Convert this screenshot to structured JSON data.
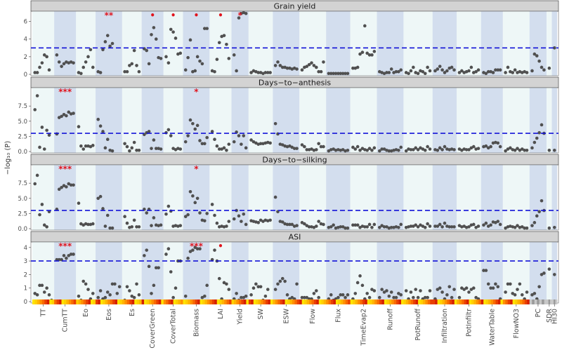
{
  "chart_data": {
    "type": "scatter",
    "ylabel": "−log₁₀ (P)",
    "threshold": 3,
    "x_categories": [
      "TT",
      "CumTT",
      "Eo",
      "Eos",
      "Es",
      "CoverGreen",
      "CoverTotal",
      "Biomass",
      "LAI",
      "Yield",
      "SW",
      "ESW",
      "Flow",
      "Flux",
      "TimeEvap2",
      "Runoff",
      "PotRunoff",
      "Infiltration",
      "PotInfiltr",
      "WaterTable",
      "FlowNO3",
      "PC",
      "SDR",
      "HI30"
    ],
    "panels": [
      {
        "title": "Grain yield",
        "ylim": [
          0,
          7
        ],
        "yticks": [
          "0",
          "2",
          "4",
          "6"
        ],
        "ytick_values": [
          0,
          2,
          4,
          6
        ],
        "values": {
          "TT": [
            0.2,
            0.2,
            0.8,
            1.3,
            2.2,
            2.0,
            0.5
          ],
          "CumTT": [
            2.2,
            1.4,
            0.9,
            1.2,
            1.4,
            1.3,
            1.4,
            1.3
          ],
          "Eo": [
            0.2,
            0.1,
            0.8,
            1.4,
            2.0,
            2.8,
            0.8
          ],
          "Eos": [
            0.3,
            0.2,
            2.8,
            3.7,
            4.4,
            3.2,
            3.5
          ],
          "Es": [
            0.3,
            0.3,
            1.0,
            1.2,
            2.7,
            1.0,
            0.3
          ],
          "CoverGreen": [
            2.9,
            2.7,
            1.2,
            4.5,
            5.3,
            4.0,
            1.9,
            1.8
          ],
          "CoverTotal": [
            2.0,
            1.3,
            5.1,
            4.8,
            4.1,
            2.3,
            2.4
          ],
          "Biomass": [
            0.5,
            1.9,
            3.9,
            0.3,
            0.4,
            2.0,
            1.5,
            1.2,
            5.2,
            5.2
          ],
          "LAI": [
            0.4,
            0.3,
            1.7,
            3.6,
            4.3,
            4.4,
            3.4,
            1.8
          ],
          "Yield": [
            2.2,
            0.4,
            6.4,
            6.9,
            7.0,
            6.9
          ],
          "SW": [
            0.2,
            0.4,
            0.3,
            0.2,
            0.2,
            0.1,
            0.2,
            0.2,
            0.2
          ],
          "ESW": [
            1.0,
            1.4,
            1.0,
            0.8,
            0.8,
            0.7,
            0.7,
            0.6,
            0.7,
            0.6
          ],
          "Flow": [
            0.5,
            0.8,
            0.9,
            1.1,
            1.3,
            1.0,
            0.8,
            0.3,
            0.3,
            1.4
          ],
          "Flux": [
            0.1,
            0.1,
            0.1,
            0.1,
            0.1,
            0.1,
            0.1,
            0.1,
            0.1
          ],
          "TimeEvap2": [
            0.7,
            0.7,
            0.8,
            2.3,
            2.5,
            5.5,
            2.4,
            2.2,
            2.2,
            2.6
          ],
          "Runoff": [
            0.3,
            0.2,
            0.1,
            0.2,
            0.2,
            0.6,
            0.2,
            0.3,
            0.3,
            0.5
          ],
          "PotRunoff": [
            0.2,
            0.1,
            0.4,
            0.8,
            0.2,
            0.1,
            0.4,
            0.3,
            0.1,
            0.8,
            0.4
          ],
          "Infiltration": [
            0.4,
            0.6,
            0.9,
            0.5,
            0.2,
            0.4,
            0.7,
            0.8,
            0.5
          ],
          "PotInfiltr": [
            0.2,
            0.4,
            0.2,
            0.3,
            0.4,
            0.8,
            0.2,
            0.3,
            0.5
          ],
          "WaterTable": [
            0.2,
            0.1,
            0.3,
            0.3,
            0.2,
            0.5,
            0.5,
            0.5
          ],
          "FlowNO3": [
            0.2,
            0.8,
            0.3,
            0.2,
            0.5,
            0.2,
            0.3,
            0.2,
            0.3,
            0.2
          ],
          "PC": [
            0.4,
            2.3,
            2.1,
            1.5,
            0.8,
            0.5
          ],
          "SDR": [
            0.7
          ],
          "HI30": [
            3.0
          ]
        },
        "stars": [
          {
            "category": "Eos",
            "text": "**"
          },
          {
            "category": "CoverGreen",
            "text": "•"
          },
          {
            "category": "CoverTotal",
            "text": "•"
          },
          {
            "category": "Biomass",
            "text": "•"
          },
          {
            "category": "LAI",
            "text": "•"
          },
          {
            "category": "Yield",
            "text": "*"
          }
        ]
      },
      {
        "title": "Days−to−anthesis",
        "ylim": [
          0,
          10.3
        ],
        "yticks": [
          "0.0",
          "2.5",
          "5.0",
          "7.5"
        ],
        "ytick_values": [
          0,
          2.5,
          5.0,
          7.5
        ],
        "values": {
          "TT": [
            6.9,
            9.2,
            0.7,
            4.0,
            0.4,
            3.5,
            2.7
          ],
          "CumTT": [
            2.9,
            5.6,
            5.8,
            6.1,
            5.9,
            6.5,
            6.2,
            6.3
          ],
          "Eo": [
            4.1,
            0.9,
            0.4,
            0.9,
            0.9,
            0.8,
            1.0
          ],
          "Eos": [
            5.3,
            4.2,
            3.3,
            0.6,
            2.0,
            0.2,
            0.1
          ],
          "Es": [
            1.3,
            0.8,
            0.1,
            0.6,
            1.5,
            0.2,
            0.2
          ],
          "CoverGreen": [
            2.8,
            3.1,
            3.3,
            0.5,
            1.9,
            0.5,
            0.5,
            0.4
          ],
          "CoverTotal": [
            3.1,
            3.6,
            2.6,
            0.5,
            0.3,
            0.5,
            0.4
          ],
          "Biomass": [
            1.6,
            2.6,
            5.2,
            4.6,
            3.7,
            4.3,
            1.8,
            1.3,
            1.3,
            2.3
          ],
          "LAI": [
            3.3,
            2.0,
            0.9,
            0.4,
            0.4,
            0.6,
            0.2,
            1.2
          ],
          "Yield": [
            1.6,
            3.2,
            2.6,
            1.2,
            2.6,
            0.6
          ],
          "SW": [
            1.9,
            1.6,
            1.4,
            1.2,
            1.3,
            1.3,
            1.4,
            1.5,
            1.4
          ],
          "ESW": [
            4.6,
            2.9,
            1.2,
            1.1,
            0.9,
            0.8,
            0.9,
            0.7,
            0.5,
            0.5
          ],
          "Flow": [
            1.1,
            0.8,
            0.3,
            0.3,
            0.4,
            0.2,
            0.3,
            1.3,
            0.8,
            0.8
          ],
          "Flux": [
            0.1,
            0.3,
            0.4,
            0.2,
            0.3,
            0.2,
            0.3,
            0.1,
            0.2
          ],
          "TimeEvap2": [
            0.7,
            0.4,
            0.8,
            0.2,
            0.5,
            0.3,
            0.2,
            0.5,
            0.2,
            0.6
          ],
          "Runoff": [
            0.1,
            0.4,
            0.4,
            0.2,
            0.1,
            0.1,
            0.2,
            0.3,
            0.2,
            0.7
          ],
          "PotRunoff": [
            0.1,
            0.4,
            0.3,
            0.3,
            0.6,
            0.3,
            0.6,
            0.4,
            0.2,
            0.8,
            0.4
          ],
          "Infiltration": [
            0.3,
            0.2,
            0.6,
            0.3,
            0.8,
            0.4,
            0.3,
            0.4,
            0.3
          ],
          "PotInfiltr": [
            0.4,
            0.2,
            0.4,
            0.3,
            0.3,
            0.6,
            0.8,
            0.4,
            0.5
          ],
          "WaterTable": [
            0.8,
            0.9,
            0.6,
            0.8,
            1.4,
            1.5,
            1.4,
            0.8
          ],
          "FlowNO3": [
            0.1,
            0.4,
            0.6,
            0.3,
            0.2,
            0.5,
            0.2,
            0.4,
            0.2,
            0.2
          ],
          "PC": [
            0.6,
            1.5,
            2.2,
            3.1,
            4.4,
            3.0
          ],
          "SDR": [
            0.2
          ],
          "HI30": [
            0.2
          ]
        },
        "stars": [
          {
            "category": "CumTT",
            "text": "***"
          },
          {
            "category": "Biomass",
            "text": "*"
          }
        ]
      },
      {
        "title": "Days−to−silking",
        "ylim": [
          0,
          10.3
        ],
        "yticks": [
          "0.0",
          "2.5",
          "5.0",
          "7.5"
        ],
        "ytick_values": [
          0,
          2.5,
          5.0,
          7.5
        ],
        "values": {
          "TT": [
            7.4,
            8.8,
            2.3,
            4.0,
            0.6,
            0.3,
            2.8
          ],
          "CumTT": [
            3.2,
            6.5,
            6.8,
            7.1,
            6.9,
            7.4,
            7.2,
            7.2
          ],
          "Eo": [
            4.2,
            0.8,
            0.6,
            0.8,
            0.7,
            0.7,
            0.8
          ],
          "Eos": [
            5.0,
            5.3,
            3.3,
            0.4,
            2.2,
            0.1,
            0.1
          ],
          "Es": [
            2.0,
            0.9,
            0.2,
            0.3,
            1.4,
            0.3,
            0.3
          ],
          "CoverGreen": [
            3.2,
            2.6,
            3.2,
            0.5,
            1.8,
            0.6,
            0.5,
            0.6
          ],
          "CoverTotal": [
            2.4,
            3.7,
            2.9,
            0.4,
            0.5,
            0.4,
            0.5
          ],
          "Biomass": [
            2.0,
            2.3,
            6.1,
            5.4,
            4.3,
            5.0,
            2.6,
            1.4,
            1.3,
            2.5
          ],
          "LAI": [
            4.0,
            2.2,
            0.9,
            0.3,
            0.4,
            0.3,
            0.4,
            1.2
          ],
          "Yield": [
            1.6,
            3.0,
            2.1,
            1.2,
            2.4,
            0.7
          ],
          "SW": [
            1.3,
            1.2,
            1.1,
            1.0,
            1.4,
            1.2,
            1.4,
            1.3,
            1.4
          ],
          "ESW": [
            5.2,
            2.8,
            1.2,
            1.1,
            0.8,
            0.7,
            0.7,
            0.7,
            0.4,
            0.5
          ],
          "Flow": [
            1.0,
            0.8,
            0.5,
            0.3,
            0.3,
            0.2,
            0.4,
            1.2,
            0.8,
            0.7
          ],
          "Flux": [
            0.2,
            0.3,
            0.6,
            0.1,
            0.2,
            0.3,
            0.3,
            0.1,
            0.1
          ],
          "TimeEvap2": [
            0.6,
            0.6,
            0.6,
            0.2,
            0.4,
            0.3,
            0.3,
            0.7,
            0.2,
            0.7
          ],
          "Runoff": [
            0.2,
            0.5,
            0.3,
            0.3,
            0.1,
            0.2,
            0.2,
            0.3,
            0.2,
            0.7
          ],
          "PotRunoff": [
            0.2,
            0.3,
            0.4,
            0.4,
            0.6,
            0.3,
            0.6,
            0.4,
            0.2,
            0.8,
            0.4
          ],
          "Infiltration": [
            0.4,
            0.4,
            0.7,
            0.3,
            0.9,
            0.4,
            0.3,
            0.3,
            0.3
          ],
          "PotInfiltr": [
            0.5,
            0.3,
            0.4,
            0.2,
            0.3,
            0.6,
            0.7,
            0.2,
            0.4
          ],
          "WaterTable": [
            0.6,
            0.9,
            0.4,
            0.6,
            1.1,
            1.0,
            1.2,
            0.7
          ],
          "FlowNO3": [
            0.1,
            0.3,
            0.4,
            0.3,
            0.2,
            0.5,
            0.2,
            0.3,
            0.1,
            0.1
          ],
          "PC": [
            0.5,
            1.0,
            2.1,
            2.8,
            4.6,
            3.0
          ],
          "SDR": [
            0.1
          ],
          "HI30": [
            0.2
          ]
        },
        "stars": [
          {
            "category": "CumTT",
            "text": "***"
          },
          {
            "category": "Biomass",
            "text": "*"
          }
        ]
      },
      {
        "title": "ASI",
        "ylim": [
          0,
          4.3
        ],
        "yticks": [
          "0",
          "1",
          "2",
          "3",
          "4"
        ],
        "ytick_values": [
          0,
          1,
          2,
          3,
          4
        ],
        "values": {
          "TT": [
            0.6,
            0.5,
            1.2,
            1.2,
            0.7,
            1.0,
            0.5,
            0.1
          ],
          "CumTT": [
            3.1,
            3.1,
            3.1,
            3.4,
            3.2,
            3.4,
            3.5,
            3.5
          ],
          "Eo": [
            0.4,
            0.1,
            1.5,
            1.3,
            0.9,
            0.2,
            0.6
          ],
          "Eos": [
            0.3,
            0.8,
            0.2,
            0.3,
            0.7,
            0.5,
            1.3,
            1.3,
            0.6,
            1.1
          ],
          "Es": [
            0.1,
            1.1,
            0.8,
            0.4,
            0.3,
            1.3,
            0.5
          ],
          "CoverGreen": [
            3.4,
            3.8,
            2.6,
            0.6,
            1.2,
            2.5,
            2.5
          ],
          "CoverTotal": [
            3.5,
            3.9,
            2.2,
            0.3,
            1.0,
            3.0,
            3.0
          ],
          "Biomass": [
            0.4,
            3.2,
            3.7,
            3.8,
            4.0,
            3.9,
            3.9,
            0.3,
            0.4,
            1.2
          ],
          "LAI": [
            3.1,
            3.8,
            3.0,
            1.7,
            0.2,
            1.4,
            1.3,
            0.9
          ],
          "Yield": [
            0.2,
            0.6,
            0.1,
            0.3,
            0.3,
            0.4
          ],
          "SW": [
            0.5,
            1.0,
            1.3,
            1.1,
            1.1,
            0.1,
            0.4,
            0.9
          ],
          "ESW": [
            0.9,
            1.3,
            1.5,
            1.7,
            1.5,
            0.5,
            0.2,
            0.3,
            0.2,
            1.3
          ],
          "Flow": [
            0.3,
            0.3,
            0.3,
            0.2,
            0.2,
            0.6,
            0.8,
            0.3
          ],
          "Flux": [
            0.2,
            0.5,
            0.1,
            0.2,
            0.3,
            0.5,
            0.5,
            0.3,
            0.5
          ],
          "TimeEvap2": [
            0.2,
            0.6,
            1.4,
            1.9,
            1.2,
            0.2,
            0.6,
            0.3,
            0.9,
            0.8
          ],
          "Runoff": [
            0.3,
            0.9,
            0.7,
            0.8,
            0.4,
            0.7,
            0.3,
            0.3,
            0.6,
            0.5
          ],
          "PotRunoff": [
            0.8,
            0.2,
            0.7,
            0.3,
            0.9,
            0.3,
            0.8,
            0.2,
            0.3,
            0.3,
            0.8
          ],
          "Infiltration": [
            0.2,
            0.9,
            1.0,
            0.7,
            0.2,
            0.5,
            1.1,
            0.3,
            0.9
          ],
          "PotInfiltr": [
            0.3,
            1.0,
            0.9,
            1.0,
            0.7,
            0.9,
            1.0,
            0.3,
            0.2
          ],
          "WaterTable": [
            2.3,
            2.3,
            1.3,
            1.0,
            1.0,
            1.3,
            1.1,
            0.2
          ],
          "FlowNO3": [
            0.7,
            1.3,
            1.3,
            0.6,
            0.5,
            0.9,
            1.3,
            0.5,
            0.2,
            0.7
          ],
          "PC": [
            0.5,
            0.6,
            0.2,
            1.1,
            2.0,
            2.1
          ],
          "SDR": [
            2.4
          ],
          "HI30": [
            2.0
          ]
        },
        "stars": [
          {
            "category": "CumTT",
            "text": "***"
          },
          {
            "category": "Biomass",
            "text": "***"
          },
          {
            "category": "LAI",
            "text": "•"
          }
        ]
      }
    ],
    "colors": {
      "panel_bg_light": "#eef7f7",
      "panel_bg_dark": "#d3deee",
      "point": "#505050",
      "threshold_line": "#1414d8",
      "star": "#e0141d",
      "strip_bg": "#d3d3d3"
    }
  }
}
